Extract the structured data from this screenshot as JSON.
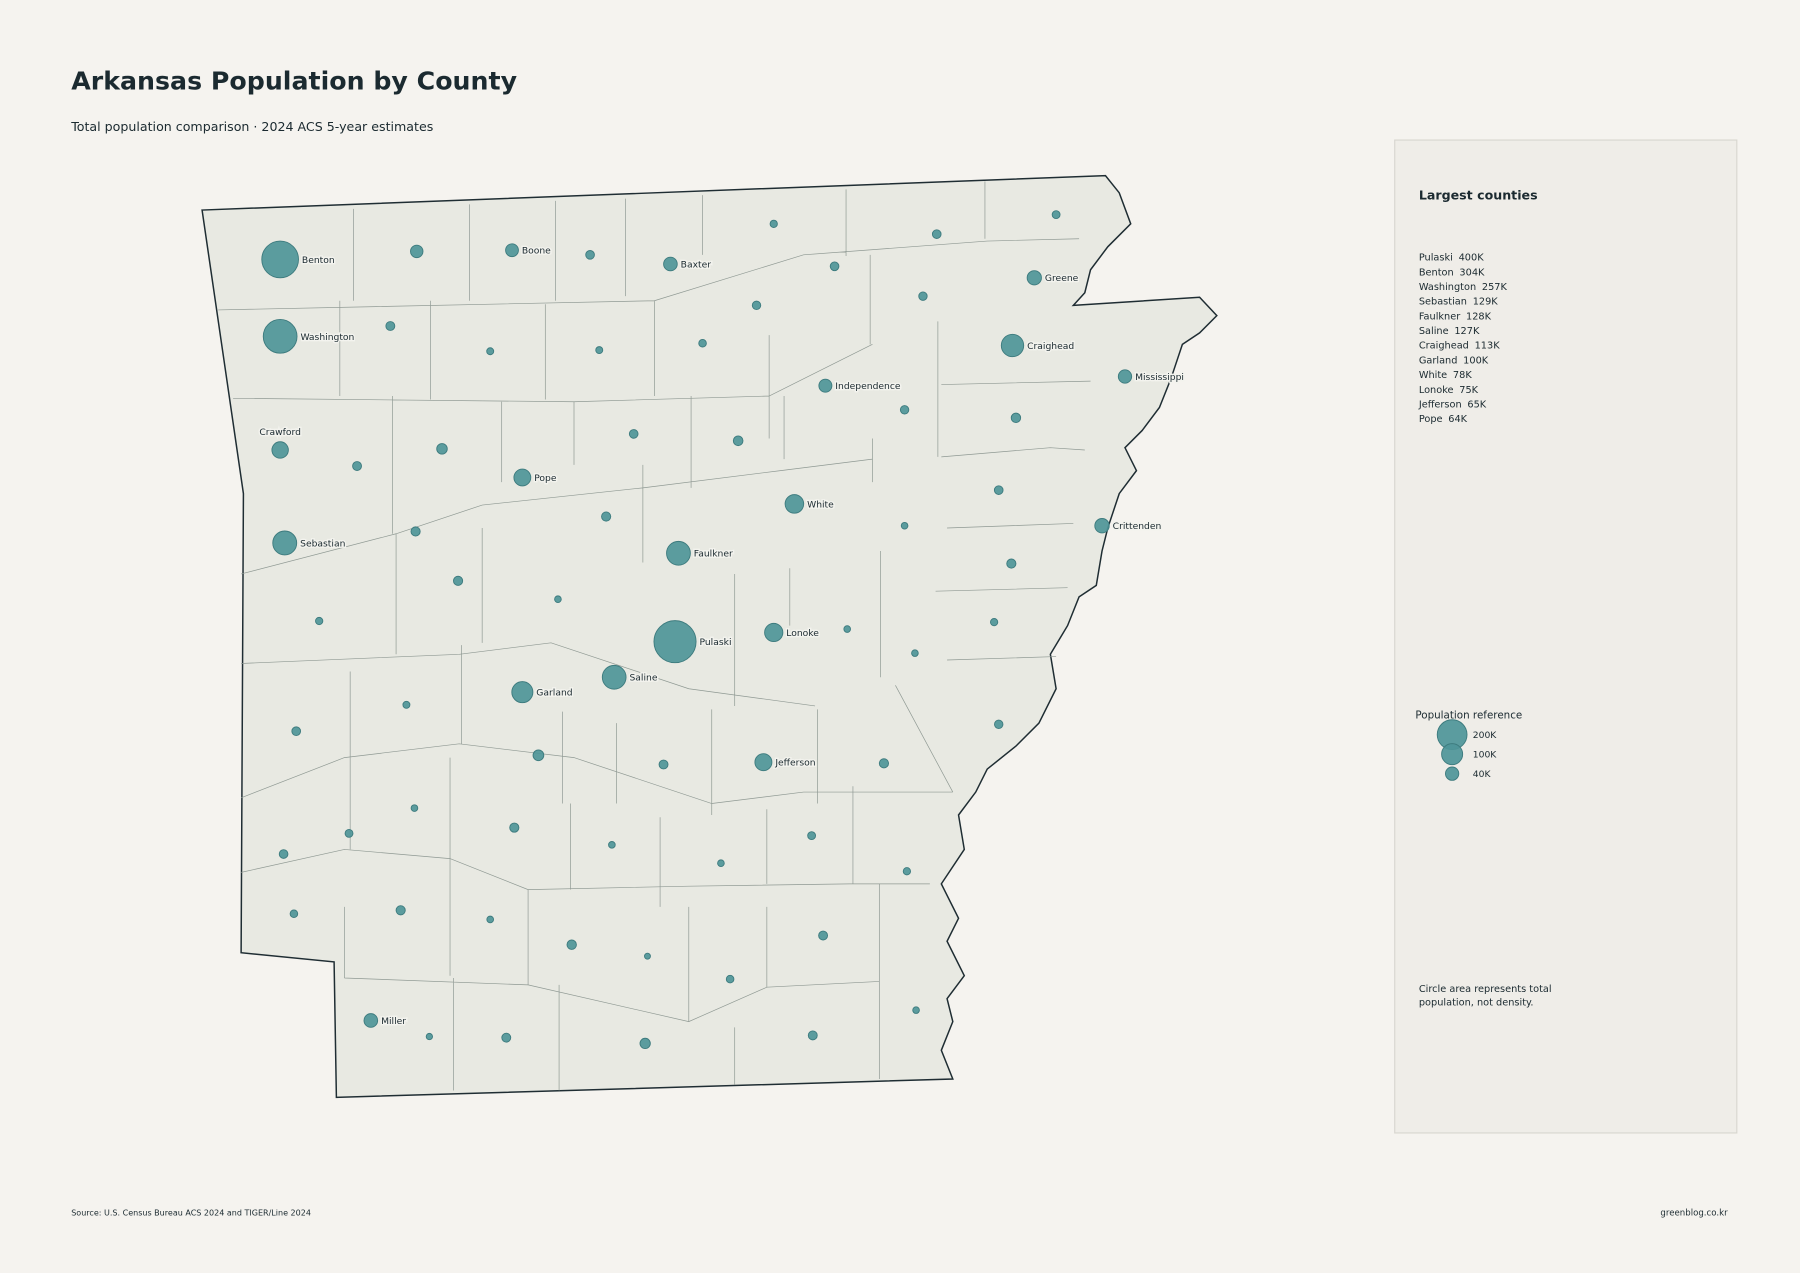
{
  "header": {
    "title": "Arkansas Population by County",
    "subtitle": "Total population comparison · 2024 ACS 5-year estimates"
  },
  "largest": {
    "title": "Largest counties",
    "items": [
      {
        "name": "Pulaski",
        "population": 400000,
        "label": "400K"
      },
      {
        "name": "Benton",
        "population": 304000,
        "label": "304K"
      },
      {
        "name": "Washington",
        "population": 257000,
        "label": "257K"
      },
      {
        "name": "Sebastian",
        "population": 129000,
        "label": "129K"
      },
      {
        "name": "Faulkner",
        "population": 128000,
        "label": "128K"
      },
      {
        "name": "Saline",
        "population": 127000,
        "label": "127K"
      },
      {
        "name": "Craighead",
        "population": 113000,
        "label": "113K"
      },
      {
        "name": "Garland",
        "population": 100000,
        "label": "100K"
      },
      {
        "name": "White",
        "population": 78000,
        "label": "78K"
      },
      {
        "name": "Lonoke",
        "population": 75000,
        "label": "75K"
      },
      {
        "name": "Jefferson",
        "population": 65000,
        "label": "65K"
      },
      {
        "name": "Pope",
        "population": 64000,
        "label": "64K"
      }
    ]
  },
  "map": {
    "named": [
      {
        "name": "Crawford",
        "population": 61000
      },
      {
        "name": "Boone",
        "population": 37000
      },
      {
        "name": "Baxter",
        "population": 42000
      },
      {
        "name": "Greene",
        "population": 46000
      },
      {
        "name": "Mississippi",
        "population": 40000
      },
      {
        "name": "Independence",
        "population": 38000
      },
      {
        "name": "Crittenden",
        "population": 47000
      },
      {
        "name": "Miller",
        "population": 42000
      }
    ],
    "unnamed": [
      35000,
      17000,
      12000,
      17000,
      14000,
      17000,
      18000,
      16000,
      16000,
      11000,
      11000,
      13000,
      16000,
      20000,
      18000,
      25000,
      17000,
      21000,
      17000,
      19000,
      10000,
      19000,
      19000,
      19000,
      10000,
      12000,
      10000,
      12000,
      10000,
      11000,
      17000,
      16000,
      26000,
      18000,
      19000,
      10000,
      14000,
      19000,
      17000,
      10000,
      14000,
      10000,
      12000,
      13000,
      19000,
      10000,
      20000,
      18000,
      8000,
      13000,
      10000,
      9000,
      18000,
      24000,
      18000
    ]
  },
  "legend": {
    "title": "Population reference",
    "items": [
      {
        "value": 200000,
        "label": "200K"
      },
      {
        "value": 100000,
        "label": "100K"
      },
      {
        "value": 40000,
        "label": "40K"
      }
    ]
  },
  "note": "Circle area represents total population, not density.",
  "footer": {
    "source": "Source: U.S. Census Bureau ACS 2024 and TIGER/Line 2024",
    "credit": "greenblog.co.kr"
  }
}
